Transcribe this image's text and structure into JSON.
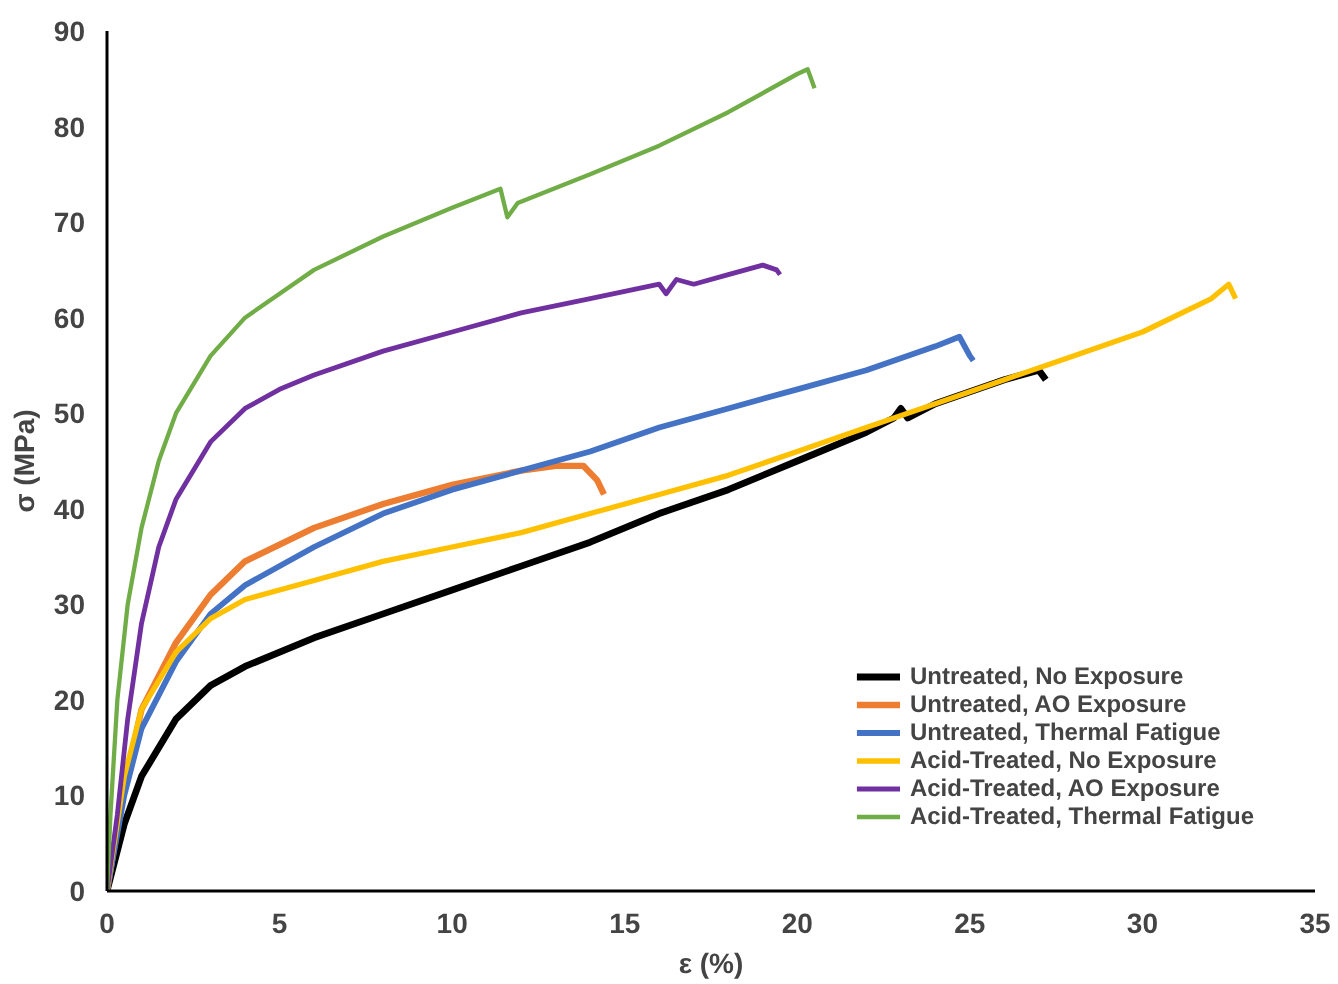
{
  "chart_data": {
    "type": "line",
    "xlabel": "ε (%)",
    "ylabel": "σ (MPa)",
    "xlim": [
      0,
      35
    ],
    "xticks": [
      0,
      5,
      10,
      15,
      20,
      25,
      30,
      35
    ],
    "ylim": [
      0,
      90
    ],
    "yticks": [
      0,
      10,
      20,
      30,
      40,
      50,
      60,
      70,
      80,
      90
    ],
    "grid": false,
    "legend": "bottom right",
    "marker": "none",
    "line_style": "solid",
    "series": [
      {
        "name": "Untreated, No Exposure",
        "color": "#000000",
        "x": [
          0,
          0.5,
          1,
          2,
          3,
          4,
          6,
          8,
          10,
          12,
          14,
          16,
          18,
          20,
          22,
          22.8,
          23,
          23.2,
          24,
          26,
          27,
          27.2
        ],
        "values": [
          0,
          7,
          12,
          18,
          21.5,
          23.5,
          26.5,
          29,
          31.5,
          34,
          36.5,
          39.5,
          42,
          45,
          48,
          49.5,
          50.5,
          49.5,
          51,
          53.5,
          54.5,
          53.5
        ]
      },
      {
        "name": "Untreated, AO Exposure",
        "color": "#ed7d31",
        "x": [
          0,
          0.5,
          1,
          2,
          3,
          4,
          6,
          8,
          10,
          12,
          13,
          13.8,
          14.2,
          14.4
        ],
        "values": [
          0,
          11,
          19,
          26,
          31,
          34.5,
          38,
          40.5,
          42.5,
          44,
          44.5,
          44.5,
          43,
          41.5
        ]
      },
      {
        "name": "Untreated, Thermal Fatigue",
        "color": "#4472c4",
        "x": [
          0,
          0.5,
          1,
          2,
          3,
          4,
          6,
          8,
          10,
          12,
          14,
          16,
          18,
          20,
          22,
          24,
          24.7,
          25,
          25.1
        ],
        "values": [
          0,
          10,
          17,
          24,
          29,
          32,
          36,
          39.5,
          42,
          44,
          46,
          48.5,
          50.5,
          52.5,
          54.5,
          57,
          58,
          56,
          55.5
        ]
      },
      {
        "name": "Acid-Treated, No Exposure",
        "color": "#ffc000",
        "x": [
          0,
          0.5,
          1,
          2,
          3,
          4,
          6,
          8,
          10,
          12,
          14,
          16,
          18,
          20,
          22,
          24,
          26,
          28,
          30,
          32,
          32.5,
          32.7
        ],
        "values": [
          0,
          12,
          19,
          25,
          28.5,
          30.5,
          32.5,
          34.5,
          36,
          37.5,
          39.5,
          41.5,
          43.5,
          46,
          48.5,
          51,
          53.5,
          56,
          58.5,
          62,
          63.5,
          62
        ]
      },
      {
        "name": "Acid-Treated, AO Exposure",
        "color": "#7030a0",
        "x": [
          0,
          0.3,
          0.6,
          1,
          1.5,
          2,
          3,
          4,
          5,
          6,
          8,
          10,
          12,
          14,
          16,
          16.2,
          16.5,
          17,
          18,
          19,
          19.4,
          19.5
        ],
        "values": [
          0,
          8,
          18,
          28,
          36,
          41,
          47,
          50.5,
          52.5,
          54,
          56.5,
          58.5,
          60.5,
          62,
          63.5,
          62.5,
          64,
          63.5,
          64.5,
          65.5,
          65,
          64.5
        ]
      },
      {
        "name": "Acid-Treated, Thermal Fatigue",
        "color": "#70ad47",
        "x": [
          0,
          0.1,
          0.3,
          0.6,
          1,
          1.5,
          2,
          3,
          4,
          5,
          6,
          8,
          10,
          11.4,
          11.6,
          11.9,
          14,
          16,
          18,
          20,
          20.3,
          20.5
        ],
        "values": [
          0,
          8,
          20,
          30,
          38,
          45,
          50,
          56,
          60,
          62.5,
          65,
          68.5,
          71.5,
          73.5,
          70.5,
          72,
          75,
          78,
          81.5,
          85.5,
          86,
          84
        ]
      }
    ]
  }
}
